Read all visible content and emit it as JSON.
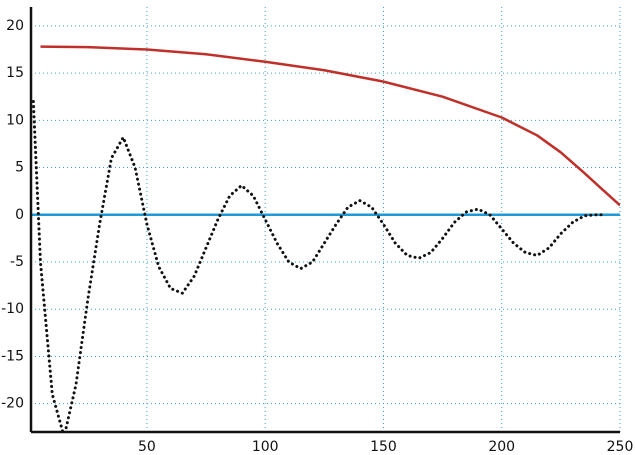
{
  "chart_data": {
    "type": "line",
    "xlim": [
      1,
      250
    ],
    "ylim": [
      -23,
      22
    ],
    "xticks": [
      50,
      100,
      150,
      200,
      250
    ],
    "yticks": [
      -20,
      -15,
      -10,
      -5,
      0,
      5,
      10,
      15,
      20
    ],
    "grid": true,
    "series": [
      {
        "color": "#1f9ad6",
        "style": "solid",
        "x": [
          1,
          250
        ],
        "values": [
          0,
          0
        ]
      },
      {
        "color": "#c0302a",
        "style": "solid",
        "x": [
          5,
          25,
          50,
          75,
          100,
          125,
          150,
          175,
          200,
          215,
          225,
          235,
          242,
          250
        ],
        "values": [
          17.8,
          17.75,
          17.5,
          17,
          16.2,
          15.3,
          14.1,
          12.5,
          10.3,
          8.4,
          6.6,
          4.4,
          2.8,
          1
        ]
      },
      {
        "color": "#111111",
        "style": "dotted",
        "x": [
          2,
          5,
          10,
          15,
          20,
          25,
          30,
          35,
          40,
          45,
          50,
          55,
          60,
          65,
          70,
          75,
          80,
          85,
          90,
          95,
          100,
          105,
          110,
          115,
          120,
          125,
          130,
          135,
          140,
          145,
          150,
          155,
          160,
          165,
          170,
          175,
          180,
          185,
          190,
          195,
          200,
          205,
          210,
          215,
          220,
          225,
          230,
          235,
          240,
          243
        ],
        "values": [
          12,
          -5,
          -19,
          -23.5,
          -18,
          -9,
          -1,
          6,
          8.2,
          5,
          -1,
          -5.5,
          -7.8,
          -8.3,
          -6.5,
          -3.5,
          -0.5,
          2,
          3.1,
          2,
          -0.5,
          -3,
          -5,
          -5.7,
          -5,
          -3,
          -1,
          0.8,
          1.5,
          0.8,
          -1,
          -3,
          -4.3,
          -4.6,
          -4,
          -2.5,
          -0.8,
          0.3,
          0.6,
          0,
          -1.5,
          -3,
          -4,
          -4.3,
          -3.5,
          -2,
          -0.8,
          -0.1,
          0,
          0
        ]
      }
    ]
  }
}
